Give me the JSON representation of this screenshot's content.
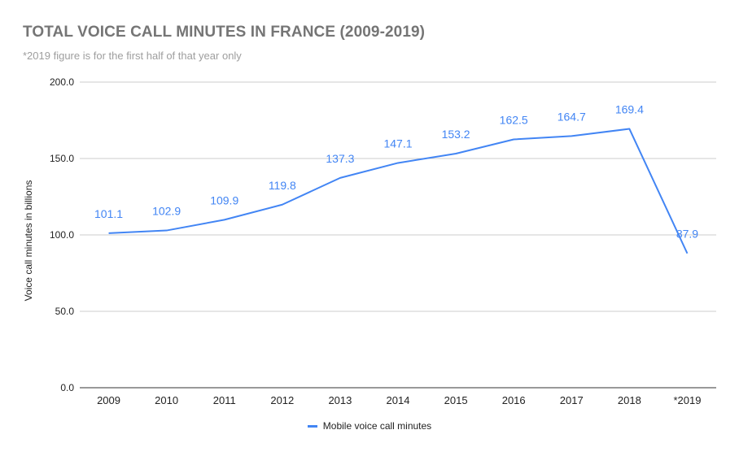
{
  "chart_data": {
    "type": "line",
    "title": "TOTAL VOICE CALL MINUTES IN FRANCE (2009-2019)",
    "subtitle": "*2019 figure is for the first half of that year only",
    "ylabel": "Voice call minutes in billions",
    "xlabel": "",
    "categories": [
      "2009",
      "2010",
      "2011",
      "2012",
      "2013",
      "2014",
      "2015",
      "2016",
      "2017",
      "2018",
      "*2019"
    ],
    "series": [
      {
        "name": "Mobile voice call minutes",
        "values": [
          101.1,
          102.9,
          109.9,
          119.8,
          137.3,
          147.1,
          153.2,
          162.5,
          164.7,
          169.4,
          87.9
        ],
        "labels": [
          "101.1",
          "102.9",
          "109.9",
          "119.8",
          "137.3",
          "147.1",
          "153.2",
          "162.5",
          "164.7",
          "169.4",
          "87.9"
        ],
        "color": "#4285f4"
      }
    ],
    "ylim": [
      0,
      200
    ],
    "yticks": [
      "0.0",
      "50.0",
      "100.0",
      "150.0",
      "200.0"
    ],
    "ytick_values": [
      0,
      50,
      100,
      150,
      200
    ],
    "grid": true,
    "legend_position": "bottom"
  },
  "colors": {
    "series": "#4285f4",
    "grid": "#cccccc",
    "title": "#757575",
    "subtitle": "#9e9e9e",
    "text": "#222222"
  }
}
